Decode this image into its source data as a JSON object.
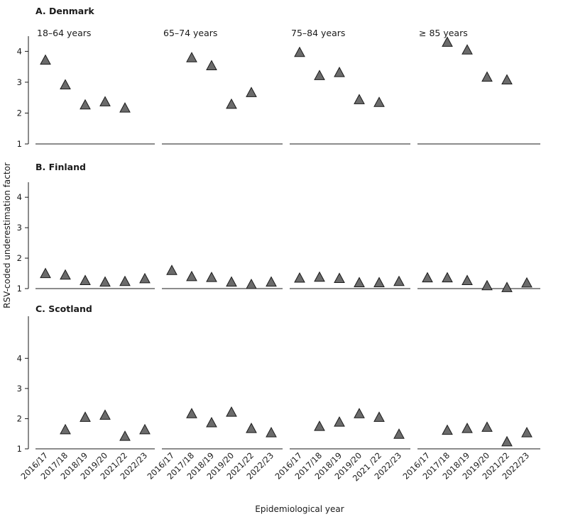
{
  "chart_data": {
    "type": "scatter",
    "marker": "triangle",
    "marker_color": "#6b6b6b",
    "marker_edge_color": "#1a1a1a",
    "ylabel": "RSV-coded underestimation factor",
    "xlabel": "Epidemiological year",
    "age_groups": [
      "18–64 years",
      "65–74 years",
      "75–84 years",
      "≥ 85 years"
    ],
    "x_categories": [
      [
        "2016/17",
        "2017/18",
        "2018/19",
        "2019/20",
        "2021/22",
        "2022/23"
      ],
      [
        "2016/17",
        "2017/18",
        "2018/19",
        "2019/20",
        "2021/22",
        "2022/23"
      ],
      [
        "2016/17",
        "2017/18",
        "2018/19",
        "2019/20",
        "2021 /22",
        "2022/23"
      ],
      [
        "2016/17",
        "2017/18",
        "2018/19",
        "2019/20",
        "2021/22",
        "2022/23"
      ]
    ],
    "countries": [
      {
        "title": "A. Denmark",
        "yticks": [
          1,
          2,
          3,
          4
        ],
        "ylim": [
          1,
          4.4
        ],
        "values": [
          [
            3.7,
            2.9,
            2.25,
            2.35,
            2.15,
            null
          ],
          [
            null,
            3.78,
            3.52,
            2.27,
            2.65,
            null
          ],
          [
            3.95,
            3.2,
            3.3,
            2.42,
            2.33,
            null
          ],
          [
            null,
            4.28,
            4.03,
            3.15,
            3.06,
            null
          ]
        ]
      },
      {
        "title": "B. Finland",
        "yticks": [
          1,
          2,
          3,
          4
        ],
        "ylim": [
          1,
          4.4
        ],
        "values": [
          [
            1.48,
            1.43,
            1.25,
            1.2,
            1.22,
            1.31
          ],
          [
            1.58,
            1.38,
            1.35,
            1.2,
            1.12,
            1.2
          ],
          [
            1.33,
            1.36,
            1.32,
            1.18,
            1.18,
            1.22
          ],
          [
            1.34,
            1.34,
            1.25,
            1.08,
            1.02,
            1.17
          ]
        ]
      },
      {
        "title": "C. Scotland",
        "yticks": [
          1,
          2,
          3,
          4
        ],
        "ylim": [
          1,
          5.3
        ],
        "values": [
          [
            null,
            1.62,
            2.03,
            2.1,
            1.4,
            1.62
          ],
          [
            null,
            2.15,
            1.85,
            2.2,
            1.66,
            1.52
          ],
          [
            null,
            1.73,
            1.87,
            2.15,
            2.03,
            1.47
          ],
          [
            null,
            1.6,
            1.66,
            1.7,
            1.22,
            1.52
          ]
        ]
      }
    ]
  }
}
